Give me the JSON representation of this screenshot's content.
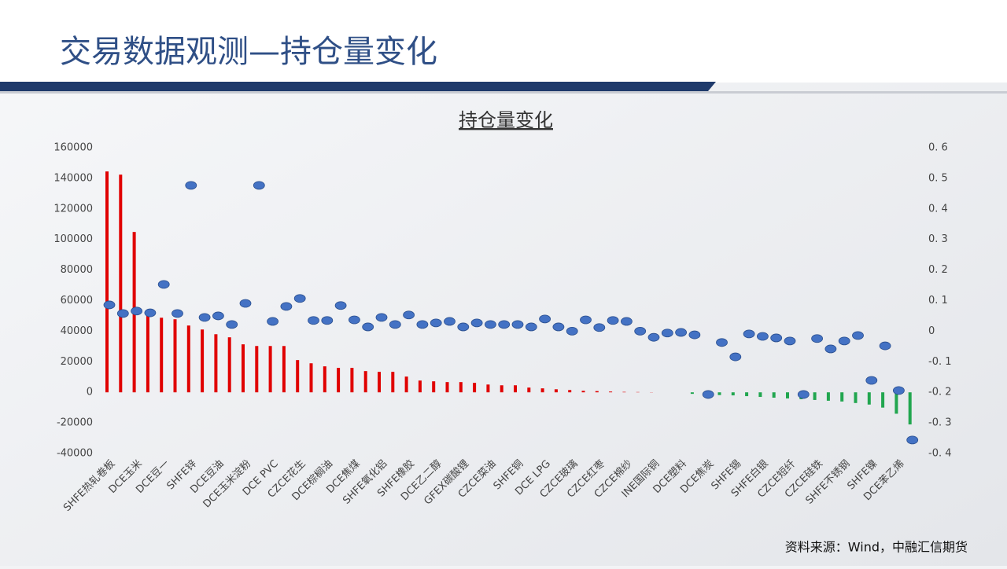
{
  "header": {
    "title": "交易数据观测—持仓量变化"
  },
  "source": "资料来源：Wind，中融汇信期货",
  "chart_data": {
    "type": "bar",
    "title": "持仓量变化",
    "categories": [
      "SHFE热轧卷板",
      null,
      "DCE玉米",
      null,
      "DCE豆一",
      null,
      "SHFE锌",
      null,
      "DCE豆油",
      null,
      "DCE玉米淀粉",
      null,
      "DCE PVC",
      null,
      "CZCE花生",
      null,
      "DCE棕榈油",
      null,
      "DCE焦煤",
      null,
      "SHFE氧化铝",
      null,
      "SHFE橡胶",
      null,
      "DCE乙二醇",
      null,
      "GFEX碳酸锂",
      null,
      "CZCE菜油",
      null,
      "SHFE铜",
      null,
      "DCE LPG",
      null,
      "CZCE玻璃",
      null,
      "CZCE红枣",
      null,
      "CZCE棉纱",
      null,
      "INE国际铜",
      null,
      "DCE塑料",
      null,
      "DCE焦炭",
      null,
      "SHFE锡",
      null,
      "SHFE白银",
      null,
      "CZCE短纤",
      null,
      "CZCE硅铁",
      null,
      "SHFE不锈钢",
      null,
      "SHFE镍",
      null,
      "DCE苯乙烯",
      null
    ],
    "series": [
      {
        "color": "#e00000",
        "negative_color": "#21a64f",
        "values": [
          144500,
          142400,
          104900,
          51000,
          48800,
          47800,
          43700,
          41100,
          38000,
          36000,
          31400,
          30300,
          30300,
          30300,
          21100,
          19000,
          17000,
          16000,
          16000,
          13900,
          13400,
          13400,
          10300,
          7700,
          7200,
          6700,
          6700,
          6200,
          5100,
          4600,
          4600,
          3100,
          2600,
          2000,
          1500,
          1000,
          800,
          500,
          300,
          200,
          100,
          0,
          0,
          -1000,
          -1500,
          -1800,
          -2000,
          -2500,
          -3000,
          -3500,
          -4000,
          -4500,
          -5000,
          -5500,
          -6000,
          -7000,
          -8000,
          -10000,
          -14000,
          -21000
        ]
      },
      {
        "type": "scatter",
        "axis": "y2",
        "color": "#4472c4",
        "values": [
          0.086,
          0.058,
          0.066,
          0.06,
          0.153,
          0.058,
          0.477,
          0.045,
          0.05,
          0.022,
          0.091,
          0.477,
          0.032,
          0.081,
          0.107,
          0.035,
          0.035,
          0.084,
          0.037,
          0.014,
          0.045,
          0.022,
          0.053,
          0.022,
          0.027,
          0.032,
          0.014,
          0.027,
          0.022,
          0.022,
          0.022,
          0.014,
          0.04,
          0.014,
          0,
          0.037,
          0.012,
          0.035,
          0.032,
          0,
          -0.02,
          -0.006,
          -0.004,
          -0.012,
          -0.207,
          -0.037,
          -0.084,
          -0.009,
          -0.017,
          -0.022,
          -0.032,
          -0.207,
          -0.024,
          -0.058,
          -0.032,
          -0.014,
          -0.161,
          -0.048,
          -0.194,
          -0.356
        ]
      }
    ],
    "ylim": [
      -40000,
      160000
    ],
    "yticks": [
      -40000,
      -20000,
      0,
      20000,
      40000,
      60000,
      80000,
      100000,
      120000,
      140000,
      160000
    ],
    "y2lim": [
      -0.4,
      0.6
    ],
    "y2ticks": [
      {
        "value": -0.4,
        "label": "-0. 4"
      },
      {
        "value": -0.3,
        "label": "-0. 3"
      },
      {
        "value": -0.2,
        "label": "-0. 2"
      },
      {
        "value": -0.1,
        "label": "-0. 1"
      },
      0,
      {
        "value": 0.1,
        "label": "0. 1"
      },
      {
        "value": 0.2,
        "label": "0. 2"
      },
      {
        "value": 0.3,
        "label": "0. 3"
      },
      {
        "value": 0.4,
        "label": "0. 4"
      },
      {
        "value": 0.5,
        "label": "0. 5"
      },
      {
        "value": 0.6,
        "label": "0. 6"
      }
    ]
  }
}
